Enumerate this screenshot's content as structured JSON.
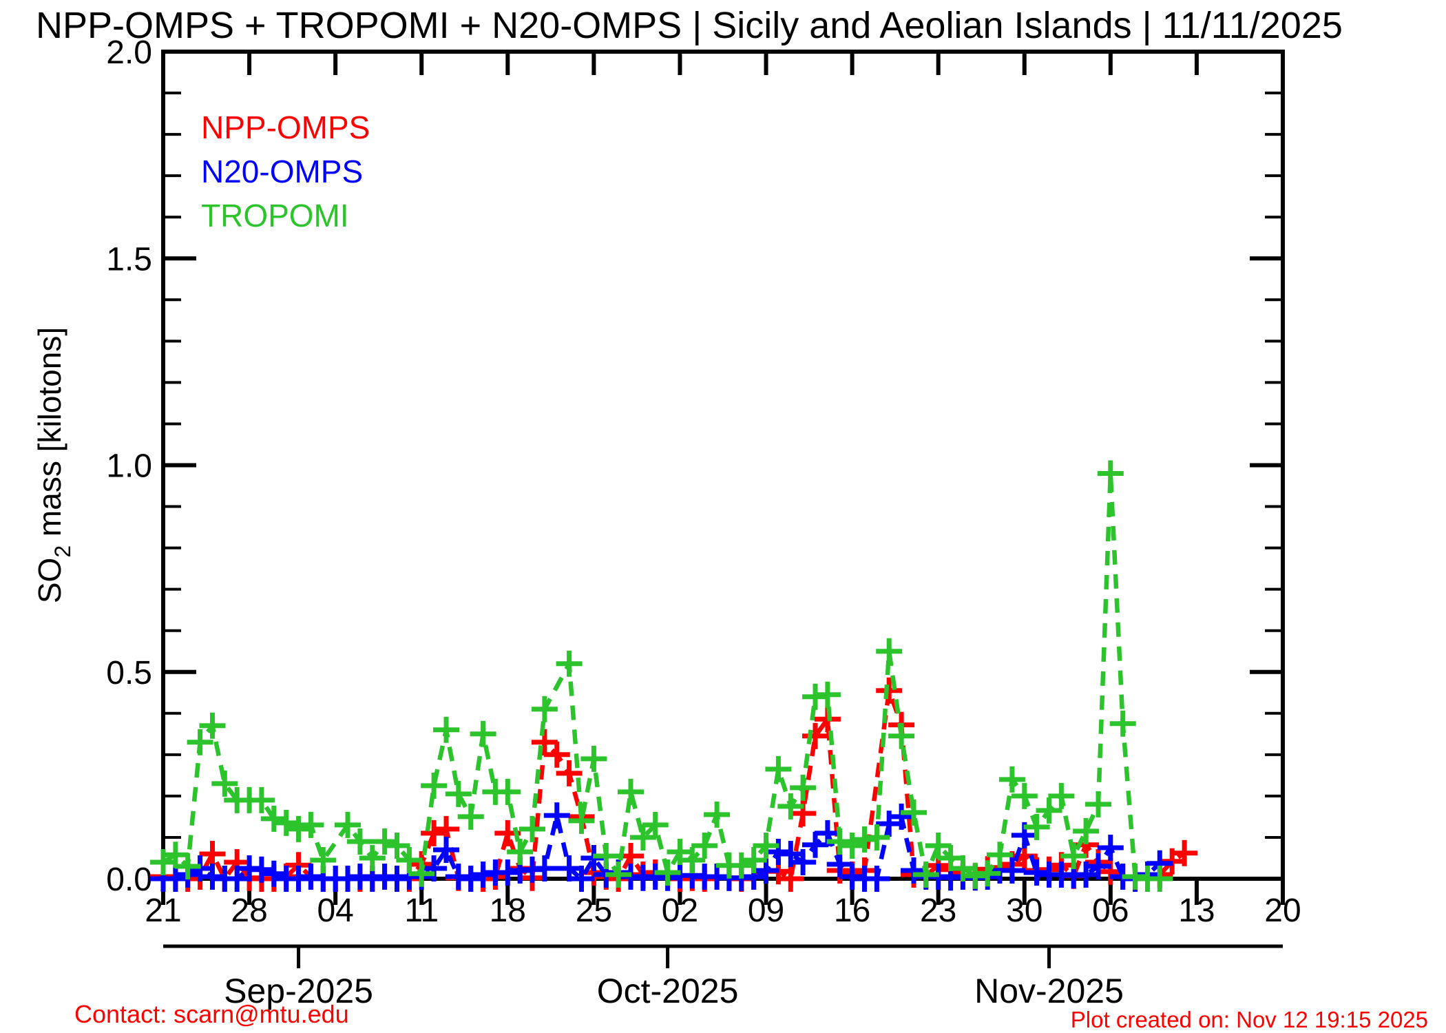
{
  "title": "NPP-OMPS + TROPOMI + N20-OMPS | Sicily and Aeolian Islands | 11/11/2025",
  "legend": [
    {
      "label": "NPP-OMPS",
      "color": "#ff0000"
    },
    {
      "label": "N20-OMPS",
      "color": "#0000ff"
    },
    {
      "label": "TROPOMI",
      "color": "#2cc32c"
    }
  ],
  "footer": {
    "contact": "Contact: scarn@mtu.edu",
    "created": "Plot created on: Nov 12 19:15 2025",
    "color": "#ff0000"
  },
  "chart_data": {
    "type": "line",
    "title": "NPP-OMPS + TROPOMI + N20-OMPS | Sicily and Aeolian Islands | 11/11/2025",
    "xlabel": "",
    "ylabel": "SO2 mass [kilotons]",
    "ylabel_parts": {
      "base": "SO",
      "sub": "2",
      "rest": " mass [kilotons]"
    },
    "ylim": [
      0,
      2.0
    ],
    "y_major_ticks": [
      {
        "v": 0.0,
        "label": "0.0"
      },
      {
        "v": 0.5,
        "label": "0.5"
      },
      {
        "v": 1.0,
        "label": "1.0"
      },
      {
        "v": 1.5,
        "label": "1.5"
      },
      {
        "v": 2.0,
        "label": "2.0"
      }
    ],
    "y_minor_step": 0.1,
    "x_start_date": "2025-08-21",
    "x_end_date": "2025-11-20",
    "x_range_days": 91,
    "x_major_ticks": [
      {
        "d": 0,
        "label": "21"
      },
      {
        "d": 7,
        "label": "28"
      },
      {
        "d": 14,
        "label": "04"
      },
      {
        "d": 21,
        "label": "11"
      },
      {
        "d": 28,
        "label": "18"
      },
      {
        "d": 35,
        "label": "25"
      },
      {
        "d": 42,
        "label": "02"
      },
      {
        "d": 49,
        "label": "09"
      },
      {
        "d": 56,
        "label": "16"
      },
      {
        "d": 63,
        "label": "23"
      },
      {
        "d": 70,
        "label": "30"
      },
      {
        "d": 77,
        "label": "06"
      },
      {
        "d": 84,
        "label": "13"
      },
      {
        "d": 91,
        "label": "20"
      }
    ],
    "month_ticks": [
      {
        "d": 11,
        "label": "Sep-2025"
      },
      {
        "d": 41,
        "label": "Oct-2025"
      },
      {
        "d": 72,
        "label": "Nov-2025"
      }
    ],
    "grid": false,
    "legend_position": "top-left-inside",
    "series": [
      {
        "name": "NPP-OMPS",
        "color": "#ff0000",
        "points": [
          [
            0,
            0.005
          ],
          [
            1,
            0
          ],
          [
            2,
            0
          ],
          [
            3,
            0.005
          ],
          [
            4,
            0.06
          ],
          [
            5,
            0
          ],
          [
            6,
            0.04
          ],
          [
            7,
            0.002
          ],
          [
            8,
            0
          ],
          [
            9,
            0
          ],
          [
            10,
            0.005
          ],
          [
            11,
            0.033
          ],
          [
            12,
            0.005
          ],
          [
            13,
            0
          ],
          [
            14,
            0
          ],
          [
            15,
            0
          ],
          [
            16,
            0
          ],
          [
            17,
            0
          ],
          [
            18,
            0.005
          ],
          [
            19,
            0
          ],
          [
            20,
            0
          ],
          [
            21,
            0.035
          ],
          [
            22,
            0.11
          ],
          [
            23,
            0.12
          ],
          [
            24,
            0.002
          ],
          [
            25,
            0
          ],
          [
            26,
            0
          ],
          [
            27,
            0.005
          ],
          [
            28,
            0.11
          ],
          [
            29,
            0.025
          ],
          [
            30,
            0.002
          ],
          [
            31,
            0.33
          ],
          [
            32,
            0.3
          ],
          [
            33,
            0.255
          ],
          [
            34,
            0.15
          ],
          [
            35,
            0.015
          ],
          [
            36,
            0.005
          ],
          [
            37,
            0
          ],
          [
            38,
            0.055
          ],
          [
            39,
            0.01
          ],
          [
            40,
            0.015
          ],
          [
            41,
            0.007
          ],
          [
            42,
            0
          ],
          [
            43,
            0.002
          ],
          [
            44,
            0
          ],
          [
            45,
            0.005
          ],
          [
            46,
            0.002
          ],
          [
            47,
            0
          ],
          [
            48,
            0.005
          ],
          [
            49,
            0.02
          ],
          [
            50,
            0.018
          ],
          [
            51,
            0
          ],
          [
            52,
            0.158
          ],
          [
            53,
            0.345
          ],
          [
            54,
            0.386
          ],
          [
            55,
            0.02
          ],
          [
            56,
            0.01
          ],
          [
            57,
            0.02
          ],
          [
            59,
            0.455
          ],
          [
            60,
            0.372
          ],
          [
            61,
            0.01
          ],
          [
            62,
            0.008
          ],
          [
            63,
            0.032
          ],
          [
            64,
            0.022
          ],
          [
            65,
            0.007
          ],
          [
            66,
            0.005
          ],
          [
            67,
            0.023
          ],
          [
            68,
            0.027
          ],
          [
            69,
            0.035
          ],
          [
            70,
            0.055
          ],
          [
            71,
            0.02
          ],
          [
            72,
            0.022
          ],
          [
            73,
            0.033
          ],
          [
            74,
            0.007
          ],
          [
            75,
            0.082
          ],
          [
            76,
            0.04
          ],
          [
            77,
            0.017
          ],
          [
            78,
            0.005
          ],
          [
            79,
            0
          ],
          [
            80,
            0.005
          ],
          [
            81,
            0.01
          ],
          [
            82,
            0.042
          ],
          [
            83,
            0.062
          ]
        ]
      },
      {
        "name": "N20-OMPS",
        "color": "#0000ff",
        "points": [
          [
            0,
            0
          ],
          [
            1,
            0
          ],
          [
            2,
            0.01
          ],
          [
            3,
            0.025
          ],
          [
            4,
            0.005
          ],
          [
            5,
            0
          ],
          [
            6,
            0
          ],
          [
            7,
            0.025
          ],
          [
            8,
            0.022
          ],
          [
            9,
            0.012
          ],
          [
            10,
            0
          ],
          [
            11,
            0
          ],
          [
            12,
            0.005
          ],
          [
            13,
            0
          ],
          [
            14,
            0
          ],
          [
            15,
            0
          ],
          [
            16,
            0.005
          ],
          [
            17,
            0
          ],
          [
            18,
            0.005
          ],
          [
            19,
            0
          ],
          [
            20,
            0.005
          ],
          [
            21,
            0.005
          ],
          [
            22,
            0.025
          ],
          [
            23,
            0.07
          ],
          [
            24,
            0.005
          ],
          [
            25,
            0
          ],
          [
            26,
            0.01
          ],
          [
            27,
            0.015
          ],
          [
            28,
            0.015
          ],
          [
            29,
            0.02
          ],
          [
            30,
            0.022
          ],
          [
            31,
            0.025
          ],
          [
            32,
            0.153
          ],
          [
            33,
            0.025
          ],
          [
            34,
            0
          ],
          [
            35,
            0.05
          ],
          [
            36,
            0.01
          ],
          [
            37,
            0.015
          ],
          [
            38,
            0.005
          ],
          [
            39,
            0.002
          ],
          [
            40,
            0.005
          ],
          [
            41,
            0.002
          ],
          [
            42,
            0.008
          ],
          [
            43,
            0.008
          ],
          [
            44,
            0.005
          ],
          [
            45,
            0.005
          ],
          [
            46,
            0.002
          ],
          [
            47,
            0.002
          ],
          [
            48,
            0.005
          ],
          [
            49,
            0.02
          ],
          [
            50,
            0.065
          ],
          [
            51,
            0.06
          ],
          [
            52,
            0.04
          ],
          [
            53,
            0.082
          ],
          [
            54,
            0.11
          ],
          [
            55,
            0.035
          ],
          [
            56,
            0.005
          ],
          [
            57,
            0
          ],
          [
            58,
            0
          ],
          [
            59,
            0.133
          ],
          [
            60,
            0.15
          ],
          [
            61,
            0.02
          ],
          [
            62,
            0.005
          ],
          [
            63,
            0.005
          ],
          [
            64,
            0.003
          ],
          [
            65,
            0.005
          ],
          [
            66,
            0.003
          ],
          [
            67,
            0.005
          ],
          [
            68,
            0.02
          ],
          [
            69,
            0.02
          ],
          [
            70,
            0.105
          ],
          [
            71,
            0.015
          ],
          [
            72,
            0.01
          ],
          [
            73,
            0.01
          ],
          [
            74,
            0.008
          ],
          [
            75,
            0.01
          ],
          [
            76,
            0.03
          ],
          [
            77,
            0.075
          ],
          [
            78,
            0.005
          ],
          [
            79,
            0
          ],
          [
            80,
            0.01
          ],
          [
            81,
            0.037
          ]
        ]
      },
      {
        "name": "TROPOMI",
        "color": "#2cc32c",
        "points": [
          [
            0,
            0.04
          ],
          [
            1,
            0.058
          ],
          [
            2,
            0.03
          ],
          [
            3,
            0.33
          ],
          [
            4,
            0.37
          ],
          [
            5,
            0.23
          ],
          [
            6,
            0.19
          ],
          [
            7,
            0.19
          ],
          [
            8,
            0.19
          ],
          [
            9,
            0.145
          ],
          [
            10,
            0.135
          ],
          [
            11,
            0.12
          ],
          [
            12,
            0.13
          ],
          [
            13,
            0.045
          ],
          [
            15,
            0.13
          ],
          [
            16,
            0.09
          ],
          [
            17,
            0.05
          ],
          [
            18,
            0.09
          ],
          [
            19,
            0.08
          ],
          [
            20,
            0.045
          ],
          [
            21,
            0.012
          ],
          [
            22,
            0.225
          ],
          [
            23,
            0.36
          ],
          [
            24,
            0.205
          ],
          [
            25,
            0.15
          ],
          [
            26,
            0.35
          ],
          [
            27,
            0.21
          ],
          [
            28,
            0.21
          ],
          [
            29,
            0.065
          ],
          [
            30,
            0.12
          ],
          [
            31,
            0.41
          ],
          [
            33,
            0.52
          ],
          [
            34,
            0.14
          ],
          [
            35,
            0.29
          ],
          [
            36,
            0.055
          ],
          [
            37,
            0.01
          ],
          [
            38,
            0.21
          ],
          [
            39,
            0.1
          ],
          [
            40,
            0.13
          ],
          [
            41,
            0.015
          ],
          [
            42,
            0.065
          ],
          [
            43,
            0.045
          ],
          [
            44,
            0.08
          ],
          [
            45,
            0.155
          ],
          [
            46,
            0.032
          ],
          [
            47,
            0.032
          ],
          [
            48,
            0.045
          ],
          [
            49,
            0.08
          ],
          [
            50,
            0.265
          ],
          [
            51,
            0.175
          ],
          [
            52,
            0.22
          ],
          [
            53,
            0.44
          ],
          [
            54,
            0.445
          ],
          [
            55,
            0.09
          ],
          [
            56,
            0.08
          ],
          [
            57,
            0.095
          ],
          [
            58,
            0.1
          ],
          [
            59,
            0.55
          ],
          [
            60,
            0.345
          ],
          [
            61,
            0.16
          ],
          [
            62,
            0.01
          ],
          [
            63,
            0.08
          ],
          [
            64,
            0.05
          ],
          [
            65,
            0.025
          ],
          [
            66,
            0.007
          ],
          [
            67,
            0.013
          ],
          [
            68,
            0.058
          ],
          [
            69,
            0.24
          ],
          [
            70,
            0.2
          ],
          [
            71,
            0.125
          ],
          [
            72,
            0.165
          ],
          [
            73,
            0.2
          ],
          [
            74,
            0.055
          ],
          [
            75,
            0.115
          ],
          [
            76,
            0.18
          ],
          [
            77,
            0.98
          ],
          [
            78,
            0.375
          ],
          [
            79,
            0.005
          ],
          [
            80,
            0
          ],
          [
            81,
            0
          ]
        ]
      }
    ]
  }
}
